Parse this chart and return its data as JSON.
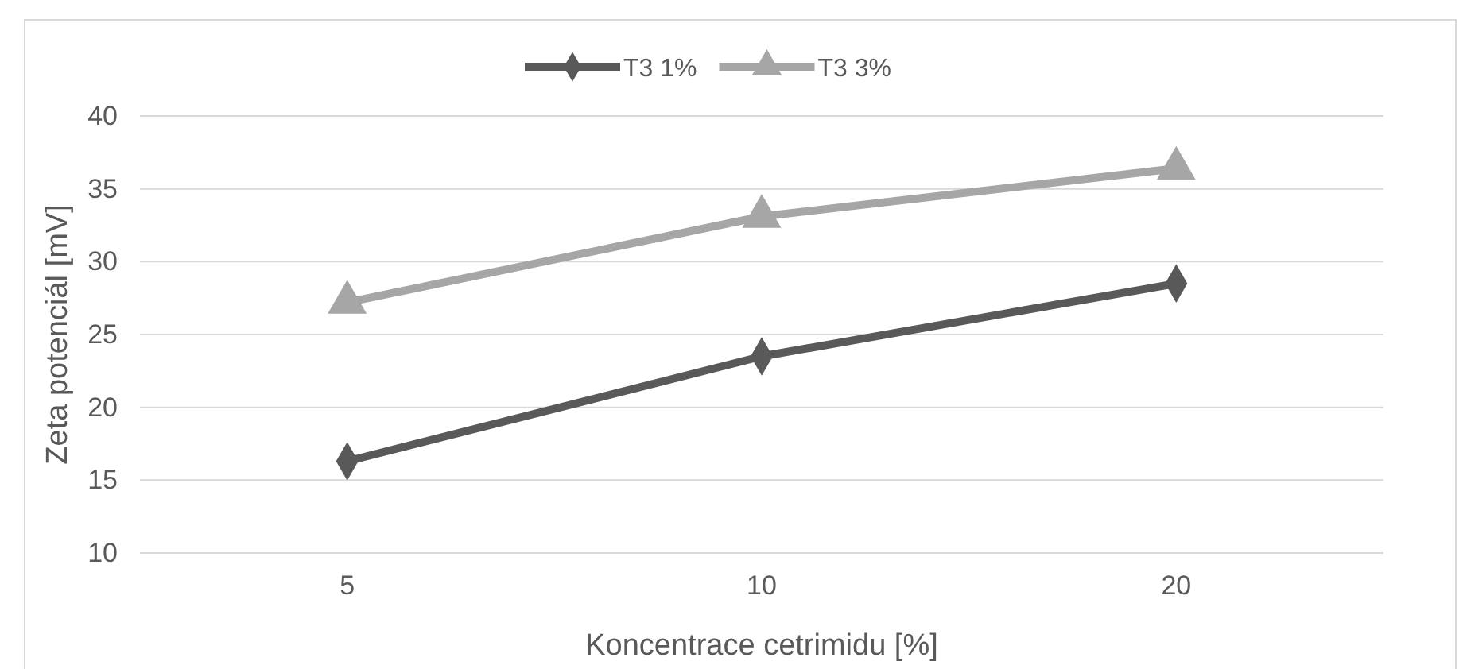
{
  "chart_data": {
    "type": "line",
    "xlabel": "Koncentrace cetrimidu [%]",
    "ylabel": "Zeta potenciál [mV]",
    "categories": [
      "5",
      "10",
      "20"
    ],
    "series": [
      {
        "name": "T3 1%",
        "color": "#595959",
        "marker": "diamond",
        "values": [
          16.3,
          23.5,
          28.5
        ]
      },
      {
        "name": "T3 3%",
        "color": "#a6a6a6",
        "marker": "triangle",
        "values": [
          27.2,
          33.1,
          36.4
        ]
      }
    ],
    "ylim": [
      10,
      40
    ],
    "yticks": [
      10,
      15,
      20,
      25,
      30,
      35,
      40
    ],
    "grid": "y",
    "legend": "top",
    "line_style": "solid"
  }
}
